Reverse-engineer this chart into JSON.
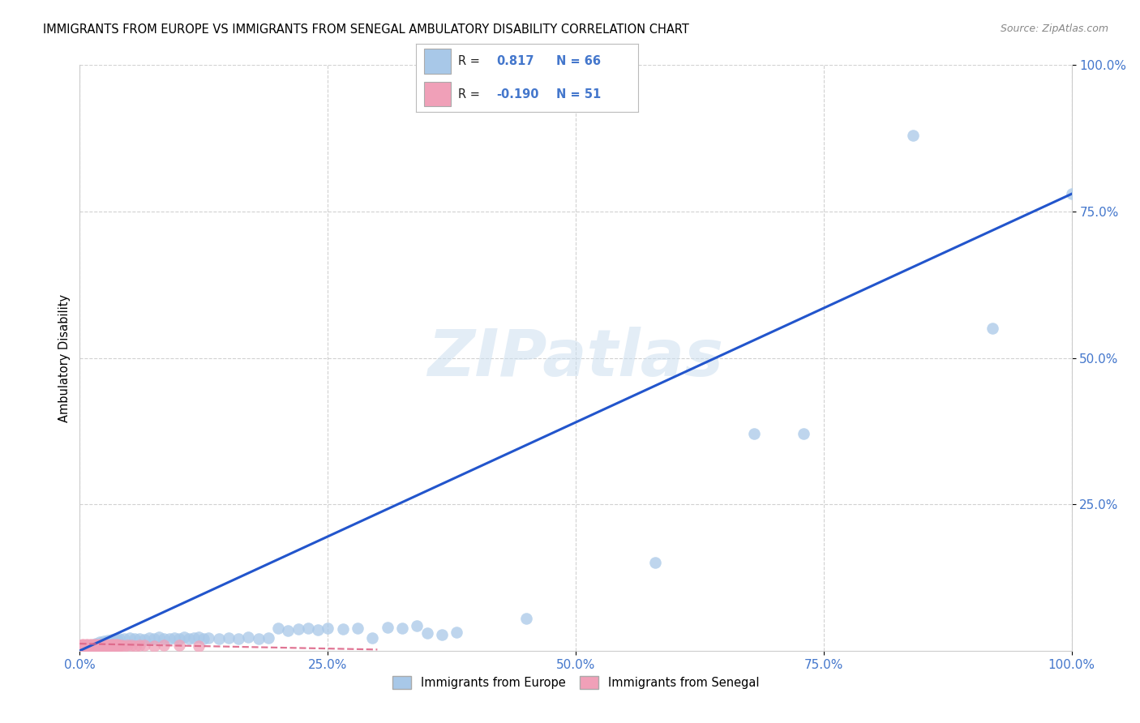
{
  "title": "IMMIGRANTS FROM EUROPE VS IMMIGRANTS FROM SENEGAL AMBULATORY DISABILITY CORRELATION CHART",
  "source": "Source: ZipAtlas.com",
  "ylabel": "Ambulatory Disability",
  "xlim": [
    0.0,
    1.0
  ],
  "ylim": [
    0.0,
    1.0
  ],
  "xtick_labels": [
    "0.0%",
    "25.0%",
    "50.0%",
    "75.0%",
    "100.0%"
  ],
  "xtick_vals": [
    0.0,
    0.25,
    0.5,
    0.75,
    1.0
  ],
  "ytick_labels": [
    "25.0%",
    "50.0%",
    "75.0%",
    "100.0%"
  ],
  "ytick_vals": [
    0.25,
    0.5,
    0.75,
    1.0
  ],
  "europe_color": "#a8c8e8",
  "senegal_color": "#f0a0b8",
  "europe_R": 0.817,
  "europe_N": 66,
  "senegal_R": -0.19,
  "senegal_N": 51,
  "europe_line_color": "#2255cc",
  "senegal_line_color": "#dd6688",
  "europe_line_x0": 0.0,
  "europe_line_y0": 0.0,
  "europe_line_x1": 1.0,
  "europe_line_y1": 0.78,
  "senegal_line_x0": 0.0,
  "senegal_line_y0": 0.012,
  "senegal_line_x1": 0.3,
  "senegal_line_y1": 0.002,
  "watermark": "ZIPatlas",
  "background_color": "#ffffff",
  "grid_color": "#cccccc",
  "axis_color": "#4477cc",
  "europe_scatter_x": [
    0.002,
    0.004,
    0.006,
    0.008,
    0.01,
    0.012,
    0.014,
    0.016,
    0.018,
    0.02,
    0.022,
    0.024,
    0.026,
    0.028,
    0.03,
    0.032,
    0.034,
    0.036,
    0.038,
    0.04,
    0.045,
    0.05,
    0.055,
    0.06,
    0.065,
    0.07,
    0.075,
    0.08,
    0.085,
    0.09,
    0.095,
    0.1,
    0.105,
    0.11,
    0.115,
    0.12,
    0.125,
    0.13,
    0.14,
    0.15,
    0.16,
    0.17,
    0.18,
    0.19,
    0.2,
    0.21,
    0.22,
    0.23,
    0.24,
    0.25,
    0.265,
    0.28,
    0.295,
    0.31,
    0.325,
    0.34,
    0.35,
    0.365,
    0.38,
    0.45,
    0.58,
    0.68,
    0.73,
    0.84,
    0.92,
    1.0
  ],
  "europe_scatter_y": [
    0.005,
    0.006,
    0.004,
    0.008,
    0.007,
    0.01,
    0.009,
    0.012,
    0.011,
    0.015,
    0.013,
    0.016,
    0.014,
    0.018,
    0.017,
    0.019,
    0.016,
    0.02,
    0.018,
    0.021,
    0.02,
    0.022,
    0.02,
    0.021,
    0.019,
    0.022,
    0.02,
    0.023,
    0.021,
    0.02,
    0.022,
    0.021,
    0.023,
    0.02,
    0.022,
    0.023,
    0.02,
    0.022,
    0.02,
    0.022,
    0.021,
    0.023,
    0.02,
    0.022,
    0.038,
    0.035,
    0.037,
    0.039,
    0.036,
    0.038,
    0.037,
    0.038,
    0.022,
    0.04,
    0.038,
    0.042,
    0.03,
    0.028,
    0.032,
    0.055,
    0.15,
    0.37,
    0.37,
    0.88,
    0.55,
    0.78
  ],
  "senegal_scatter_x": [
    0.001,
    0.002,
    0.003,
    0.004,
    0.005,
    0.006,
    0.007,
    0.008,
    0.009,
    0.01,
    0.011,
    0.012,
    0.013,
    0.014,
    0.015,
    0.016,
    0.017,
    0.018,
    0.019,
    0.02,
    0.021,
    0.022,
    0.023,
    0.024,
    0.025,
    0.026,
    0.027,
    0.028,
    0.029,
    0.03,
    0.031,
    0.032,
    0.033,
    0.034,
    0.035,
    0.036,
    0.037,
    0.038,
    0.039,
    0.04,
    0.042,
    0.045,
    0.048,
    0.052,
    0.056,
    0.06,
    0.065,
    0.075,
    0.085,
    0.1,
    0.12
  ],
  "senegal_scatter_y": [
    0.009,
    0.01,
    0.011,
    0.009,
    0.008,
    0.01,
    0.011,
    0.009,
    0.008,
    0.01,
    0.011,
    0.009,
    0.008,
    0.01,
    0.011,
    0.009,
    0.008,
    0.01,
    0.011,
    0.009,
    0.008,
    0.01,
    0.011,
    0.009,
    0.008,
    0.01,
    0.011,
    0.009,
    0.01,
    0.009,
    0.008,
    0.01,
    0.011,
    0.009,
    0.008,
    0.01,
    0.011,
    0.009,
    0.008,
    0.01,
    0.009,
    0.008,
    0.01,
    0.009,
    0.008,
    0.01,
    0.009,
    0.008,
    0.01,
    0.009,
    0.008
  ]
}
